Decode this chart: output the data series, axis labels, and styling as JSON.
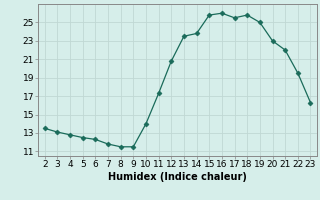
{
  "x": [
    2,
    3,
    4,
    5,
    6,
    7,
    8,
    9,
    10,
    11,
    12,
    13,
    14,
    15,
    16,
    17,
    18,
    19,
    20,
    21,
    22,
    23
  ],
  "y": [
    13.5,
    13.1,
    12.8,
    12.5,
    12.3,
    11.8,
    11.5,
    11.5,
    14.0,
    17.3,
    20.8,
    23.5,
    23.8,
    25.8,
    26.0,
    25.5,
    25.8,
    25.0,
    23.0,
    22.0,
    19.5,
    16.3
  ],
  "line_color": "#1a6b5a",
  "marker": "D",
  "marker_size": 2.5,
  "bg_color": "#d6eeea",
  "grid_color": "#c0d8d4",
  "xlabel": "Humidex (Indice chaleur)",
  "ylim": [
    10.5,
    27
  ],
  "xlim": [
    1.5,
    23.5
  ],
  "yticks": [
    11,
    13,
    15,
    17,
    19,
    21,
    23,
    25
  ],
  "xticks": [
    2,
    3,
    4,
    5,
    6,
    7,
    8,
    9,
    10,
    11,
    12,
    13,
    14,
    15,
    16,
    17,
    18,
    19,
    20,
    21,
    22,
    23
  ],
  "xlabel_fontsize": 7,
  "tick_fontsize": 6.5
}
